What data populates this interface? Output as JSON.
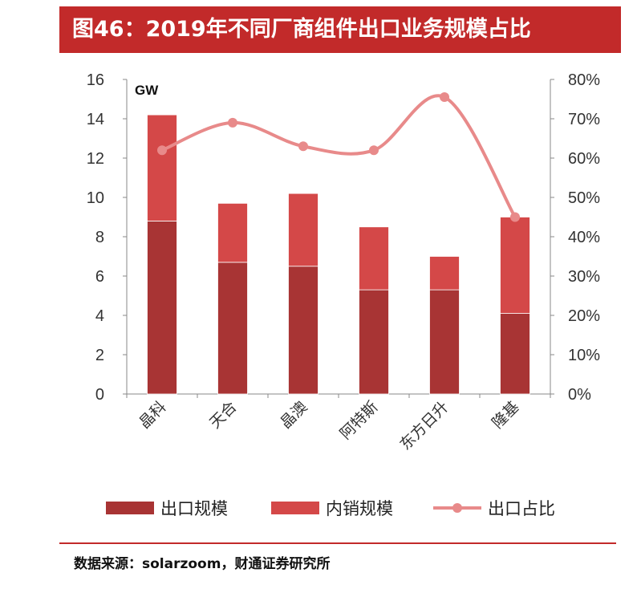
{
  "figure": {
    "title": "图46：2019年不同厂商组件出口业务规模占比",
    "source": "数据来源：solarzoom，财通证券研究所"
  },
  "chart_data": {
    "type": "bar",
    "stacked": true,
    "categories": [
      "晶科",
      "天合",
      "晶澳",
      "阿特斯",
      "东方日升",
      "隆基"
    ],
    "series": [
      {
        "name": "出口规模",
        "type": "bar",
        "axis": "left",
        "color": "#a83434",
        "values": [
          8.8,
          6.7,
          6.5,
          5.3,
          5.3,
          4.1
        ]
      },
      {
        "name": "内销规模",
        "type": "bar",
        "axis": "left",
        "color": "#d44848",
        "values": [
          5.4,
          3.0,
          3.7,
          3.2,
          1.7,
          4.9
        ]
      },
      {
        "name": "出口占比",
        "type": "line",
        "axis": "right",
        "color": "#e88a8a",
        "values": [
          62,
          69,
          63,
          62,
          75.5,
          45
        ]
      }
    ],
    "ylabel": "GW",
    "ylim": [
      0,
      16
    ],
    "yticks": [
      "0",
      "2",
      "4",
      "6",
      "8",
      "10",
      "12",
      "14",
      "16"
    ],
    "y2lim": [
      0,
      80
    ],
    "y2ticks": [
      "0%",
      "10%",
      "20%",
      "30%",
      "40%",
      "50%",
      "60%",
      "70%",
      "80%"
    ],
    "legend_position": "bottom",
    "grid": false
  }
}
